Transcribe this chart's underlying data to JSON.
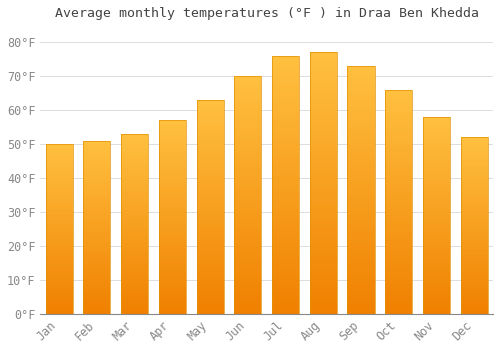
{
  "title": "Average monthly temperatures (°F ) in Draa Ben Khedda",
  "months": [
    "Jan",
    "Feb",
    "Mar",
    "Apr",
    "May",
    "Jun",
    "Jul",
    "Aug",
    "Sep",
    "Oct",
    "Nov",
    "Dec"
  ],
  "values": [
    50,
    51,
    53,
    57,
    63,
    70,
    76,
    77,
    73,
    66,
    58,
    52
  ],
  "bar_color_top": "#FFB733",
  "bar_color_bottom": "#F08000",
  "bar_edge_color": "#E09000",
  "background_color": "#FFFFFF",
  "grid_color": "#DDDDDD",
  "title_fontsize": 9.5,
  "tick_fontsize": 8.5,
  "tick_color": "#888888",
  "title_color": "#444444",
  "ylabel_values": [
    0,
    10,
    20,
    30,
    40,
    50,
    60,
    70,
    80
  ],
  "ylim": [
    0,
    85
  ]
}
